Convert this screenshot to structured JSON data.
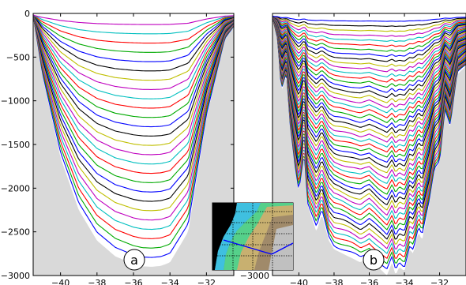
{
  "chart_data": [
    {
      "panel": "a",
      "type": "line",
      "title": "",
      "xlabel": "",
      "ylabel": "",
      "xlim": [
        -41.5,
        -30.5
      ],
      "ylim": [
        -3000,
        0
      ],
      "xticks": [
        "−40",
        "−38",
        "−36",
        "−34",
        "−32"
      ],
      "xtick_values": [
        -40,
        -38,
        -36,
        -34,
        -32
      ],
      "yticks": [
        "0",
        "−500",
        "−1000",
        "−1500",
        "−2000",
        "−2500",
        "−3000"
      ],
      "ytick_values": [
        0,
        -500,
        -1000,
        -1500,
        -2000,
        -2500,
        -3000
      ],
      "bathymetry": {
        "x": [
          -41.5,
          -41,
          -40,
          -39,
          -38,
          -37,
          -36,
          -35.5,
          -35,
          -34.5,
          -34,
          -33,
          -32,
          -31,
          -30.5
        ],
        "depth": [
          -20,
          -700,
          -1650,
          -2250,
          -2600,
          -2780,
          -2870,
          -2895,
          -2900,
          -2890,
          -2850,
          -2500,
          -1200,
          -300,
          -150
        ]
      },
      "series_count": 26,
      "series_colors": [
        "#0000ff",
        "#00aa00",
        "#ff0000",
        "#00bfbf",
        "#bf00bf",
        "#bfbf00",
        "#000000"
      ],
      "series": [
        {
          "index": 0,
          "center_depth": -2870
        },
        {
          "index": 1,
          "center_depth": -2760
        },
        {
          "index": 2,
          "center_depth": -2640
        },
        {
          "index": 3,
          "center_depth": -2520
        },
        {
          "index": 4,
          "center_depth": -2390
        },
        {
          "index": 5,
          "center_depth": -2270
        },
        {
          "index": 6,
          "center_depth": -2140
        },
        {
          "index": 7,
          "center_depth": -2020
        },
        {
          "index": 8,
          "center_depth": -1900
        },
        {
          "index": 9,
          "center_depth": -1780
        },
        {
          "index": 10,
          "center_depth": -1650
        },
        {
          "index": 11,
          "center_depth": -1530
        },
        {
          "index": 12,
          "center_depth": -1420
        },
        {
          "index": 13,
          "center_depth": -1300
        },
        {
          "index": 14,
          "center_depth": -1180
        },
        {
          "index": 15,
          "center_depth": -1060
        },
        {
          "index": 16,
          "center_depth": -960
        },
        {
          "index": 17,
          "center_depth": -860
        },
        {
          "index": 18,
          "center_depth": -760
        },
        {
          "index": 19,
          "center_depth": -660
        },
        {
          "index": 20,
          "center_depth": -560
        },
        {
          "index": 21,
          "center_depth": -460
        },
        {
          "index": 22,
          "center_depth": -360
        },
        {
          "index": 23,
          "center_depth": -260
        },
        {
          "index": 24,
          "center_depth": -160
        },
        {
          "index": 25,
          "center_depth": -80
        }
      ],
      "label": "a",
      "background_color": "#d9d9d9"
    },
    {
      "panel": "b",
      "type": "line",
      "title": "",
      "xlabel": "",
      "ylabel": "",
      "xlim": [
        -41.5,
        -30.5
      ],
      "ylim": [
        -3000,
        0
      ],
      "xticks": [
        "−40",
        "−38",
        "−36",
        "−34",
        "−32"
      ],
      "xtick_values": [
        -40,
        -38,
        -36,
        -34,
        -32
      ],
      "yticks": [
        "−3000"
      ],
      "ytick_values": [
        -3000
      ],
      "bathymetry": {
        "x": [
          -41.5,
          -41.2,
          -41,
          -40.7,
          -40.5,
          -40.2,
          -40,
          -39.7,
          -39.5,
          -39,
          -38.7,
          -38.3,
          -38,
          -37.5,
          -37,
          -36.5,
          -36,
          -35.5,
          -35,
          -34.7,
          -34.5,
          -34.3,
          -34,
          -33.7,
          -33.5,
          -33.2,
          -33,
          -32.6,
          -32.3,
          -32,
          -31.7,
          -31.4,
          -31,
          -30.5
        ],
        "depth": [
          -50,
          -300,
          -900,
          -700,
          -1300,
          -1800,
          -2050,
          -1600,
          -2200,
          -2500,
          -2300,
          -2600,
          -2700,
          -2750,
          -2800,
          -2850,
          -2780,
          -2900,
          -3000,
          -2850,
          -3000,
          -2900,
          -2950,
          -2700,
          -2750,
          -2500,
          -2600,
          -2200,
          -1800,
          -1700,
          -1100,
          -1300,
          -700,
          -600
        ]
      },
      "series_count": 50,
      "series_colors": [
        "#0000ff",
        "#00aa00",
        "#ff0000",
        "#00bfbf",
        "#bf00bf",
        "#bfbf00",
        "#000000"
      ],
      "label": "b",
      "background_color": "#d9d9d9"
    }
  ],
  "inset_map": {
    "description_name": "location-map-inset",
    "grid_rows": 5,
    "grid_cols": 4
  }
}
